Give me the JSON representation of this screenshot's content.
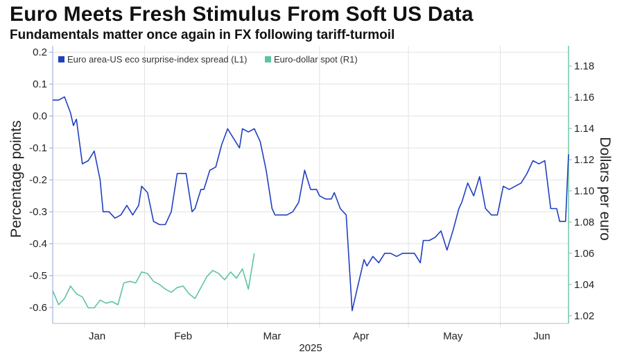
{
  "header": {
    "title": "Euro Meets Fresh Stimulus From Soft US Data",
    "subtitle": "Fundamentals matter once again in FX following tariff-turmoil"
  },
  "colors": {
    "spread": "#1f3fbf",
    "spot": "#5cc4a0",
    "grid": "#e1e1e1",
    "axis": "#8fa3d6",
    "right_axis": "#6fc9a8"
  },
  "chart_data": {
    "type": "line",
    "title": "Euro Meets Fresh Stimulus From Soft US Data",
    "subtitle": "Fundamentals matter once again in FX following tariff-turmoil",
    "xlabel": "2025",
    "ylabel_left": "Percentage points",
    "ylabel_right": "Dollars per euro",
    "x_range": [
      "2025-01-01",
      "2025-06-24"
    ],
    "x_ticks": [
      {
        "label": "Jan",
        "date": "2025-01-16"
      },
      {
        "label": "Feb",
        "date": "2025-02-14"
      },
      {
        "label": "Mar",
        "date": "2025-03-16"
      },
      {
        "label": "Apr",
        "date": "2025-04-15"
      },
      {
        "label": "May",
        "date": "2025-05-16"
      },
      {
        "label": "Jun",
        "date": "2025-06-15"
      }
    ],
    "ylim_left": [
      -0.65,
      0.22
    ],
    "yticks_left": [
      0.2,
      0.1,
      0.0,
      -0.1,
      -0.2,
      -0.3,
      -0.4,
      -0.5,
      -0.6
    ],
    "yticks_left_labels": [
      "0.2",
      "0.1",
      "0.0",
      "-0.1",
      "-0.2",
      "-0.3",
      "-0.4",
      "-0.5",
      "-0.6"
    ],
    "ylim_right": [
      1.015,
      1.193
    ],
    "yticks_right": [
      1.18,
      1.16,
      1.14,
      1.12,
      1.1,
      1.08,
      1.06,
      1.04,
      1.02
    ],
    "yticks_right_labels": [
      "1.18",
      "1.16",
      "1.14",
      "1.12",
      "1.10",
      "1.08",
      "1.06",
      "1.04",
      "1.02"
    ],
    "grid": true,
    "legend_position": "top-left",
    "series": [
      {
        "name": "Euro area-US eco surprise-index spread (L1)",
        "axis": "left",
        "points": [
          [
            "2025-01-01",
            0.05
          ],
          [
            "2025-01-03",
            0.05
          ],
          [
            "2025-01-05",
            0.06
          ],
          [
            "2025-01-07",
            0.01
          ],
          [
            "2025-01-08",
            -0.03
          ],
          [
            "2025-01-09",
            -0.01
          ],
          [
            "2025-01-11",
            -0.15
          ],
          [
            "2025-01-13",
            -0.14
          ],
          [
            "2025-01-15",
            -0.11
          ],
          [
            "2025-01-17",
            -0.2
          ],
          [
            "2025-01-18",
            -0.3
          ],
          [
            "2025-01-20",
            -0.3
          ],
          [
            "2025-01-22",
            -0.32
          ],
          [
            "2025-01-24",
            -0.31
          ],
          [
            "2025-01-26",
            -0.28
          ],
          [
            "2025-01-28",
            -0.31
          ],
          [
            "2025-01-30",
            -0.28
          ],
          [
            "2025-01-31",
            -0.22
          ],
          [
            "2025-02-02",
            -0.24
          ],
          [
            "2025-02-04",
            -0.33
          ],
          [
            "2025-02-06",
            -0.34
          ],
          [
            "2025-02-08",
            -0.34
          ],
          [
            "2025-02-10",
            -0.3
          ],
          [
            "2025-02-12",
            -0.18
          ],
          [
            "2025-02-15",
            -0.18
          ],
          [
            "2025-02-17",
            -0.3
          ],
          [
            "2025-02-18",
            -0.29
          ],
          [
            "2025-02-20",
            -0.23
          ],
          [
            "2025-02-21",
            -0.23
          ],
          [
            "2025-02-23",
            -0.17
          ],
          [
            "2025-02-25",
            -0.16
          ],
          [
            "2025-02-27",
            -0.09
          ],
          [
            "2025-03-01",
            -0.04
          ],
          [
            "2025-03-03",
            -0.07
          ],
          [
            "2025-03-05",
            -0.1
          ],
          [
            "2025-03-06",
            -0.04
          ],
          [
            "2025-03-08",
            -0.05
          ],
          [
            "2025-03-10",
            -0.04
          ],
          [
            "2025-03-12",
            -0.08
          ],
          [
            "2025-03-14",
            -0.17
          ],
          [
            "2025-03-16",
            -0.29
          ],
          [
            "2025-03-17",
            -0.31
          ],
          [
            "2025-03-19",
            -0.31
          ],
          [
            "2025-03-21",
            -0.31
          ],
          [
            "2025-03-23",
            -0.3
          ],
          [
            "2025-03-25",
            -0.27
          ],
          [
            "2025-03-27",
            -0.17
          ],
          [
            "2025-03-29",
            -0.23
          ],
          [
            "2025-03-31",
            -0.23
          ],
          [
            "2025-04-01",
            -0.25
          ],
          [
            "2025-04-03",
            -0.26
          ],
          [
            "2025-04-05",
            -0.26
          ],
          [
            "2025-04-06",
            -0.24
          ],
          [
            "2025-04-08",
            -0.29
          ],
          [
            "2025-04-10",
            -0.31
          ],
          [
            "2025-04-12",
            -0.61
          ],
          [
            "2025-04-14",
            -0.53
          ],
          [
            "2025-04-16",
            -0.45
          ],
          [
            "2025-04-17",
            -0.47
          ],
          [
            "2025-04-19",
            -0.44
          ],
          [
            "2025-04-21",
            -0.46
          ],
          [
            "2025-04-23",
            -0.43
          ],
          [
            "2025-04-25",
            -0.43
          ],
          [
            "2025-04-27",
            -0.44
          ],
          [
            "2025-04-29",
            -0.43
          ],
          [
            "2025-05-01",
            -0.43
          ],
          [
            "2025-05-03",
            -0.43
          ],
          [
            "2025-05-05",
            -0.46
          ],
          [
            "2025-05-06",
            -0.39
          ],
          [
            "2025-05-08",
            -0.39
          ],
          [
            "2025-05-10",
            -0.38
          ],
          [
            "2025-05-12",
            -0.36
          ],
          [
            "2025-05-14",
            -0.42
          ],
          [
            "2025-05-16",
            -0.36
          ],
          [
            "2025-05-18",
            -0.29
          ],
          [
            "2025-05-19",
            -0.27
          ],
          [
            "2025-05-21",
            -0.21
          ],
          [
            "2025-05-23",
            -0.25
          ],
          [
            "2025-05-25",
            -0.19
          ],
          [
            "2025-05-27",
            -0.29
          ],
          [
            "2025-05-29",
            -0.31
          ],
          [
            "2025-05-31",
            -0.31
          ],
          [
            "2025-06-02",
            -0.22
          ],
          [
            "2025-06-04",
            -0.23
          ],
          [
            "2025-06-06",
            -0.22
          ],
          [
            "2025-06-08",
            -0.21
          ],
          [
            "2025-06-10",
            -0.18
          ],
          [
            "2025-06-12",
            -0.14
          ],
          [
            "2025-06-14",
            -0.15
          ],
          [
            "2025-06-16",
            -0.14
          ],
          [
            "2025-06-18",
            -0.29
          ],
          [
            "2025-06-20",
            -0.29
          ],
          [
            "2025-06-21",
            -0.33
          ],
          [
            "2025-06-23",
            -0.33
          ],
          [
            "2025-06-24",
            -0.12
          ]
        ]
      },
      {
        "name": "Euro-dollar spot (R1)",
        "axis": "right",
        "points": [
          [
            "2025-01-01",
            1.036
          ],
          [
            "2025-01-03",
            1.027
          ],
          [
            "2025-01-05",
            1.031
          ],
          [
            "2025-01-07",
            1.039
          ],
          [
            "2025-01-09",
            1.034
          ],
          [
            "2025-01-11",
            1.032
          ],
          [
            "2025-01-13",
            1.025
          ],
          [
            "2025-01-15",
            1.025
          ],
          [
            "2025-01-17",
            1.03
          ],
          [
            "2025-01-19",
            1.028
          ],
          [
            "2025-01-21",
            1.029
          ],
          [
            "2025-01-23",
            1.027
          ],
          [
            "2025-01-25",
            1.041
          ],
          [
            "2025-01-27",
            1.042
          ],
          [
            "2025-01-29",
            1.041
          ],
          [
            "2025-01-31",
            1.048
          ],
          [
            "2025-02-02",
            1.047
          ],
          [
            "2025-02-04",
            1.042
          ],
          [
            "2025-02-06",
            1.04
          ],
          [
            "2025-02-08",
            1.037
          ],
          [
            "2025-02-10",
            1.035
          ],
          [
            "2025-02-12",
            1.038
          ],
          [
            "2025-02-14",
            1.039
          ],
          [
            "2025-02-16",
            1.034
          ],
          [
            "2025-02-18",
            1.031
          ],
          [
            "2025-02-20",
            1.038
          ],
          [
            "2025-02-22",
            1.045
          ],
          [
            "2025-02-24",
            1.049
          ],
          [
            "2025-02-26",
            1.047
          ],
          [
            "2025-02-28",
            1.043
          ],
          [
            "2025-03-02",
            1.048
          ],
          [
            "2025-03-04",
            1.044
          ],
          [
            "2025-03-06",
            1.05
          ],
          [
            "2025-03-08",
            1.037
          ],
          [
            "2025-03-10",
            1.06
          ]
        ]
      }
    ]
  }
}
